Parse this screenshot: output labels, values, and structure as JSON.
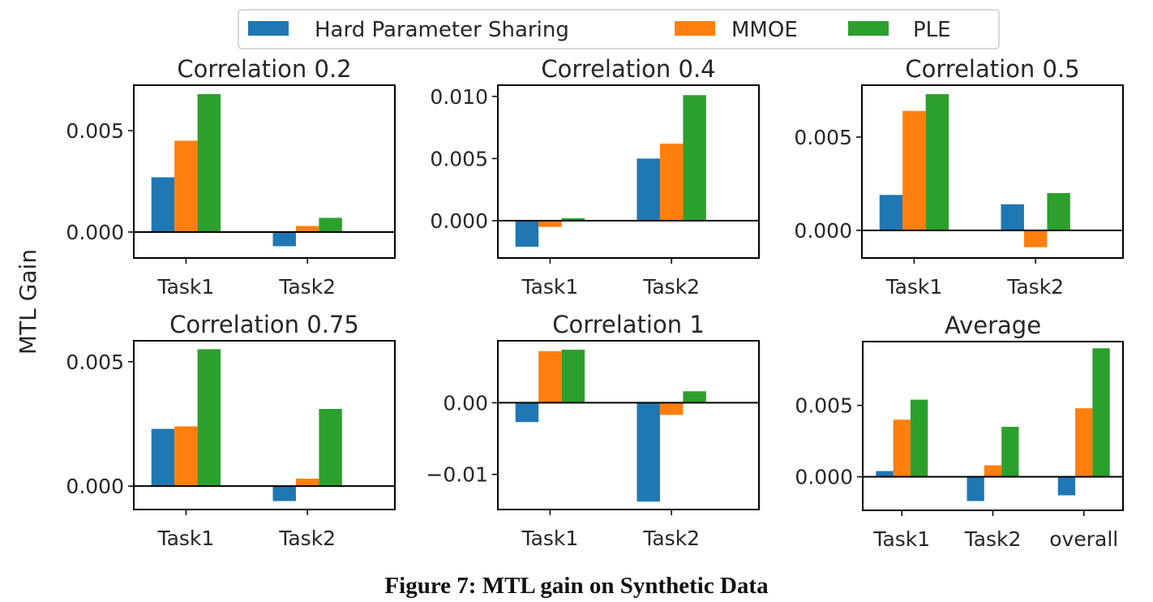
{
  "chart_data": [
    {
      "type": "bar",
      "title": "Correlation 0.2",
      "categories": [
        "Task1",
        "Task2"
      ],
      "series": [
        {
          "name": "Hard Parameter Sharing",
          "values": [
            0.0027,
            -0.0007
          ]
        },
        {
          "name": "MMOE",
          "values": [
            0.0045,
            0.0003
          ]
        },
        {
          "name": "PLE",
          "values": [
            0.0068,
            0.0007
          ]
        }
      ],
      "yticks": [
        0.0,
        0.005
      ],
      "ytick_labels": [
        "0.000",
        "0.005"
      ],
      "ylim": [
        -0.00128,
        0.00724
      ]
    },
    {
      "type": "bar",
      "title": "Correlation 0.4",
      "categories": [
        "Task1",
        "Task2"
      ],
      "series": [
        {
          "name": "Hard Parameter Sharing",
          "values": [
            -0.0021,
            0.005
          ]
        },
        {
          "name": "MMOE",
          "values": [
            -0.0005,
            0.0062
          ]
        },
        {
          "name": "PLE",
          "values": [
            0.0002,
            0.0101
          ]
        }
      ],
      "yticks": [
        0.0,
        0.005,
        0.01
      ],
      "ytick_labels": [
        "0.000",
        "0.005",
        "0.010"
      ],
      "ylim": [
        -0.003,
        0.0109
      ]
    },
    {
      "type": "bar",
      "title": "Correlation 0.5",
      "categories": [
        "Task1",
        "Task2"
      ],
      "series": [
        {
          "name": "Hard Parameter Sharing",
          "values": [
            0.0019,
            0.0014
          ]
        },
        {
          "name": "MMOE",
          "values": [
            0.0064,
            -0.0009
          ]
        },
        {
          "name": "PLE",
          "values": [
            0.0073,
            0.002
          ]
        }
      ],
      "yticks": [
        0.0,
        0.005
      ],
      "ytick_labels": [
        "0.000",
        "0.005"
      ],
      "ylim": [
        -0.00148,
        0.00778
      ]
    },
    {
      "type": "bar",
      "title": "Correlation 0.75",
      "categories": [
        "Task1",
        "Task2"
      ],
      "series": [
        {
          "name": "Hard Parameter Sharing",
          "values": [
            0.0023,
            -0.0006
          ]
        },
        {
          "name": "MMOE",
          "values": [
            0.0024,
            0.0003
          ]
        },
        {
          "name": "PLE",
          "values": [
            0.0055,
            0.0031
          ]
        }
      ],
      "yticks": [
        0.0,
        0.005
      ],
      "ytick_labels": [
        "0.000",
        "0.005"
      ],
      "ylim": [
        -0.00094,
        0.00584
      ]
    },
    {
      "type": "bar",
      "title": "Correlation 1",
      "categories": [
        "Task1",
        "Task2"
      ],
      "series": [
        {
          "name": "Hard Parameter Sharing",
          "values": [
            -0.0027,
            -0.0138
          ]
        },
        {
          "name": "MMOE",
          "values": [
            0.0072,
            -0.0017
          ]
        },
        {
          "name": "PLE",
          "values": [
            0.0074,
            0.0016
          ]
        }
      ],
      "yticks": [
        -0.01,
        0.0
      ],
      "ytick_labels": [
        "−0.01",
        "0.00"
      ],
      "ylim": [
        -0.0149,
        0.00865
      ]
    },
    {
      "type": "bar",
      "title": "Average",
      "categories": [
        "Task1",
        "Task2",
        "overall"
      ],
      "series": [
        {
          "name": "Hard Parameter Sharing",
          "values": [
            0.0004,
            -0.0017,
            -0.0013
          ]
        },
        {
          "name": "MMOE",
          "values": [
            0.004,
            0.0008,
            0.0048
          ]
        },
        {
          "name": "PLE",
          "values": [
            0.0054,
            0.0035,
            0.009
          ]
        }
      ],
      "yticks": [
        0.0,
        0.005
      ],
      "ytick_labels": [
        "0.000",
        "0.005"
      ],
      "ylim": [
        -0.00235,
        0.00947
      ]
    }
  ],
  "legend": {
    "placement": "top-center",
    "entries": [
      {
        "label": "Hard Parameter Sharing",
        "color": "#1f77b4"
      },
      {
        "label": "MMOE",
        "color": "#ff7f0e"
      },
      {
        "label": "PLE",
        "color": "#2ca02c"
      }
    ]
  },
  "ylabel": "MTL Gain",
  "caption": "Figure 7: MTL gain on Synthetic Data",
  "grid": false,
  "zero_line": true
}
